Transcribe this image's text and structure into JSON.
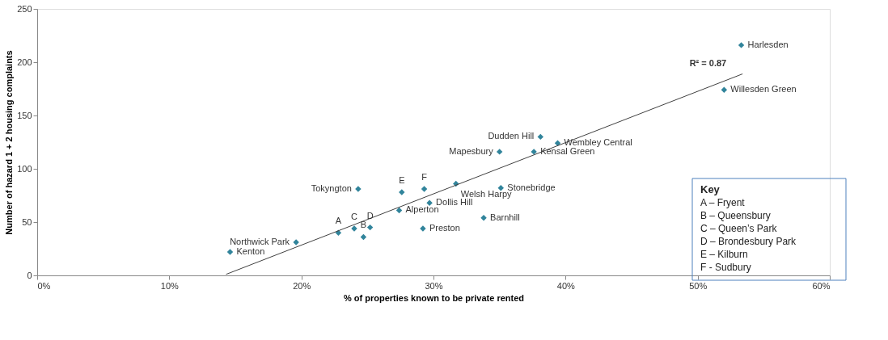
{
  "chart_data": {
    "type": "scatter",
    "xlabel": "% of properties known to be private rented",
    "ylabel": "Number of hazard 1 + 2 housing complaints",
    "xlim": [
      0,
      60
    ],
    "ylim": [
      0,
      250
    ],
    "xticks": [
      {
        "value": 0,
        "label": "0%"
      },
      {
        "value": 10,
        "label": "10%"
      },
      {
        "value": 20,
        "label": "20%"
      },
      {
        "value": 30,
        "label": "30%"
      },
      {
        "value": 40,
        "label": "40%"
      },
      {
        "value": 50,
        "label": "50%"
      },
      {
        "value": 60,
        "label": "60%"
      }
    ],
    "yticks": [
      0,
      50,
      100,
      150,
      200,
      250
    ],
    "grid": false,
    "legend": false,
    "series": [
      {
        "marker": "diamond",
        "color": "#31849b",
        "x": [
          14.6,
          19.6,
          22.8,
          24.0,
          24.7,
          25.2,
          24.3,
          27.4,
          27.6,
          29.3,
          29.7,
          29.2,
          31.7,
          35.1,
          33.8,
          35.0,
          37.6,
          38.1,
          39.4,
          52.0,
          53.3
        ],
        "values": [
          22,
          31,
          40,
          44,
          36,
          45,
          81,
          61,
          78,
          81,
          68,
          44,
          86,
          82,
          54,
          116,
          116,
          130,
          124,
          174,
          216
        ]
      },
      {
        "type": "line",
        "marker": "none",
        "color": "#404040",
        "x": [
          14.3,
          53.4
        ],
        "values": [
          1,
          189
        ]
      }
    ],
    "annotations": [
      "R² = 0.87",
      {
        "text": "Kenton",
        "x": 14.6,
        "y": 22
      },
      {
        "text": "Northwick Park",
        "x": 19.6,
        "y": 31
      },
      {
        "text": "A",
        "x": 22.8,
        "y": 40
      },
      {
        "text": "C",
        "x": 24.0,
        "y": 44
      },
      {
        "text": "B",
        "x": 24.7,
        "y": 36
      },
      {
        "text": "D",
        "x": 25.2,
        "y": 45
      },
      {
        "text": "Tokyngton",
        "x": 24.3,
        "y": 81
      },
      {
        "text": "Alperton",
        "x": 27.4,
        "y": 61
      },
      {
        "text": "E",
        "x": 27.6,
        "y": 78
      },
      {
        "text": "F",
        "x": 29.3,
        "y": 81
      },
      {
        "text": "Dollis Hill",
        "x": 29.7,
        "y": 68
      },
      {
        "text": "Preston",
        "x": 29.2,
        "y": 44
      },
      {
        "text": "Welsh Harpy",
        "x": 31.7,
        "y": 86
      },
      {
        "text": "Stonebridge",
        "x": 35.1,
        "y": 82
      },
      {
        "text": "Barnhill",
        "x": 33.8,
        "y": 54
      },
      {
        "text": "Mapesbury",
        "x": 35.0,
        "y": 116
      },
      {
        "text": "Kensal Green",
        "x": 37.6,
        "y": 116
      },
      {
        "text": "Dudden Hill",
        "x": 38.1,
        "y": 130
      },
      {
        "text": "Wembley Central",
        "x": 39.4,
        "y": 124
      },
      {
        "text": "Willesden Green",
        "x": 52.0,
        "y": 174
      },
      {
        "text": "Harlesden",
        "x": 53.3,
        "y": 216
      },
      "Key",
      "A – Fryent",
      "B – Queensbury",
      "C – Queen’s Park",
      "D – Brondesbury Park",
      "E – Kilburn",
      "F - Sudbury"
    ]
  }
}
